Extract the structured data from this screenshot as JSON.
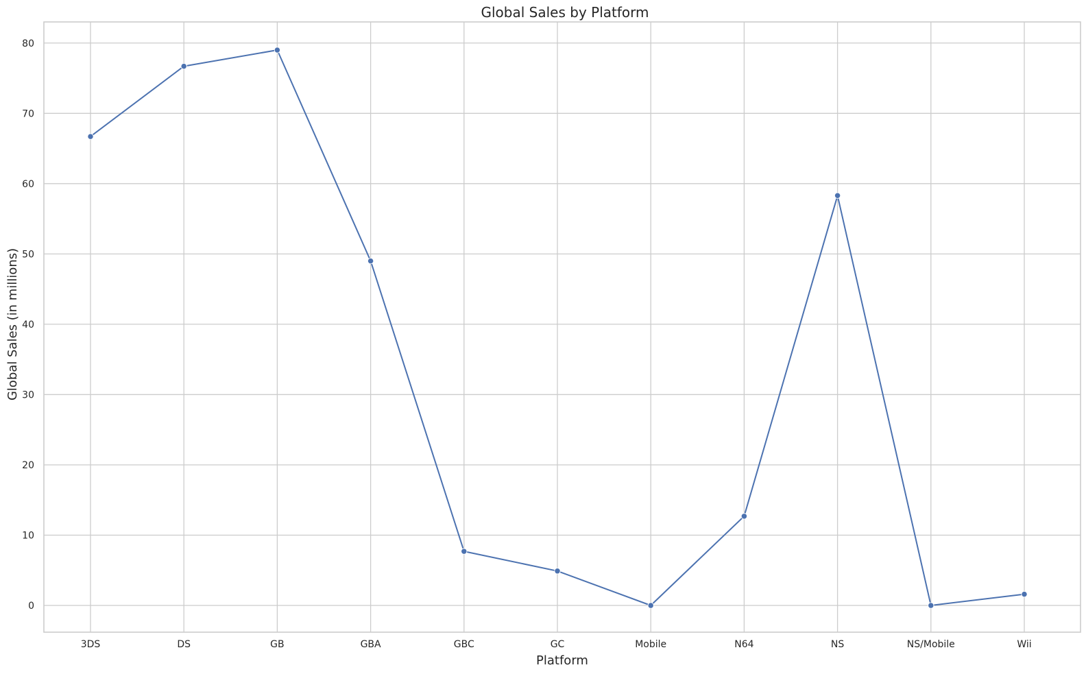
{
  "chart_data": {
    "type": "line",
    "title": "Global Sales by Platform",
    "xlabel": "Platform",
    "ylabel": "Global Sales (in millions)",
    "categories": [
      "3DS",
      "DS",
      "GB",
      "GBA",
      "GBC",
      "GC",
      "Mobile",
      "N64",
      "NS",
      "NS/Mobile",
      "Wii"
    ],
    "series": [
      {
        "values": [
          66.7,
          76.7,
          79.0,
          49.0,
          7.7,
          4.9,
          0.0,
          12.7,
          58.3,
          0.0,
          1.6
        ]
      }
    ],
    "ylim": [
      -3.8,
      83
    ],
    "yticks": [
      0,
      10,
      20,
      30,
      40,
      50,
      60,
      70,
      80
    ],
    "grid": true,
    "legend": "none",
    "colors": {
      "line": "#4c72b0",
      "grid": "#cccccc",
      "text": "#262626",
      "background": "#ffffff"
    },
    "marker": "circle"
  }
}
